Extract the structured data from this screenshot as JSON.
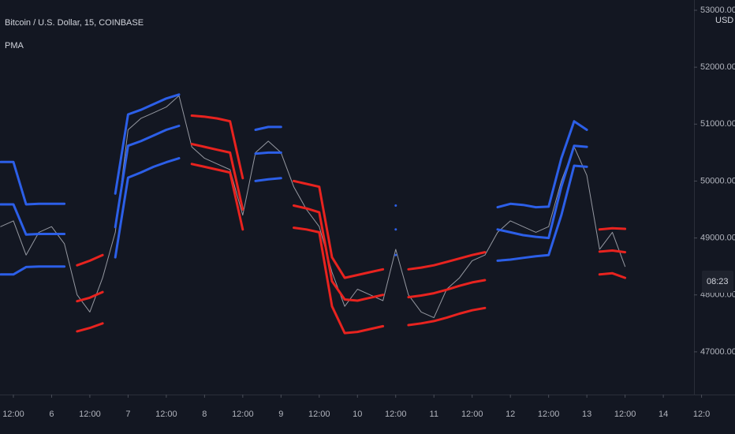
{
  "chart_data": {
    "type": "line",
    "title": "Bitcoin / U.S. Dollar, 15, COINBASE",
    "indicator": "PMA",
    "currency": "USD",
    "countdown": "08:23",
    "x": [
      8,
      12,
      16,
      20,
      24,
      28,
      32,
      36,
      40,
      44,
      48,
      52,
      56,
      60,
      64,
      68,
      72,
      76,
      80,
      84,
      88,
      92,
      96,
      100,
      104,
      108,
      112,
      116,
      120,
      124,
      128,
      132,
      136,
      140,
      144,
      148,
      152,
      156,
      160,
      164,
      168,
      172,
      176,
      180,
      184,
      188,
      192,
      196,
      200,
      204
    ],
    "xlim": [
      7.8,
      238.5
    ],
    "xticks": [
      {
        "value": 12,
        "label": "12:00"
      },
      {
        "value": 24,
        "label": "6"
      },
      {
        "value": 36,
        "label": "12:00"
      },
      {
        "value": 48,
        "label": "7"
      },
      {
        "value": 60,
        "label": "12:00"
      },
      {
        "value": 72,
        "label": "8"
      },
      {
        "value": 84,
        "label": "12:00"
      },
      {
        "value": 96,
        "label": "9"
      },
      {
        "value": 108,
        "label": "12:00"
      },
      {
        "value": 120,
        "label": "10"
      },
      {
        "value": 132,
        "label": "12:00"
      },
      {
        "value": 144,
        "label": "11"
      },
      {
        "value": 156,
        "label": "12:00"
      },
      {
        "value": 168,
        "label": "12"
      },
      {
        "value": 180,
        "label": "12:00"
      },
      {
        "value": 192,
        "label": "13"
      },
      {
        "value": 204,
        "label": "12:00"
      },
      {
        "value": 216,
        "label": "14"
      },
      {
        "value": 228,
        "label": "12:0"
      }
    ],
    "ylim": [
      46250,
      53180
    ],
    "yticks": [
      {
        "value": 47000,
        "label": "47000.00"
      },
      {
        "value": 48000,
        "label": "48000.00"
      },
      {
        "value": 49000,
        "label": "49000.00"
      },
      {
        "value": 50000,
        "label": "50000.00"
      },
      {
        "value": 51000,
        "label": "51000.00"
      },
      {
        "value": 52000,
        "label": "52000.00"
      },
      {
        "value": 53000,
        "label": "53000.00"
      }
    ],
    "grid": false,
    "series": [
      {
        "color": "#9598a1",
        "width": 1,
        "values": [
          49200,
          49300,
          48700,
          49100,
          49200,
          48900,
          48000,
          47700,
          48300,
          49100,
          50900,
          51100,
          51200,
          51300,
          51500,
          50600,
          50400,
          50300,
          50200,
          49400,
          50500,
          50700,
          50500,
          49900,
          49500,
          49200,
          48400,
          47800,
          48100,
          48000,
          47900,
          48800,
          48000,
          47700,
          47600,
          48100,
          48300,
          48600,
          48700,
          49100,
          49300,
          49200,
          49100,
          49200,
          50000,
          50600,
          50100,
          48800,
          49100,
          48500
        ]
      },
      {
        "color": "#2c5fe8",
        "width": 3,
        "values": [
          50335,
          50335,
          49590,
          49600,
          49600,
          49600,
          null,
          null,
          null,
          49780,
          51170,
          51250,
          51350,
          51450,
          51520,
          null,
          null,
          null,
          null,
          null,
          50900,
          50950,
          50950,
          null,
          null,
          null,
          null,
          null,
          null,
          null,
          null,
          49570,
          null,
          null,
          null,
          null,
          null,
          null,
          null,
          49540,
          49600,
          49580,
          49540,
          49550,
          50400,
          51050,
          50900,
          null,
          null,
          null
        ]
      },
      {
        "color": "#2c5fe8",
        "width": 3,
        "values": [
          49590,
          49590,
          49060,
          49070,
          49070,
          49070,
          null,
          null,
          null,
          49190,
          50620,
          50700,
          50800,
          50900,
          50970,
          null,
          null,
          null,
          null,
          null,
          50480,
          50500,
          50500,
          null,
          null,
          null,
          null,
          null,
          null,
          null,
          null,
          49150,
          null,
          null,
          null,
          null,
          null,
          null,
          null,
          49150,
          49100,
          49050,
          49020,
          49000,
          49900,
          50620,
          50600,
          null,
          null,
          null
        ]
      },
      {
        "color": "#2c5fe8",
        "width": 3,
        "values": [
          48360,
          48360,
          48490,
          48500,
          48500,
          48500,
          null,
          null,
          null,
          48660,
          50060,
          50150,
          50250,
          50330,
          50400,
          null,
          null,
          null,
          null,
          null,
          50000,
          50030,
          50050,
          null,
          null,
          null,
          null,
          null,
          null,
          null,
          null,
          48700,
          null,
          null,
          null,
          null,
          null,
          null,
          null,
          48600,
          48620,
          48650,
          48680,
          48700,
          49400,
          50270,
          50250,
          null,
          null,
          null
        ]
      },
      {
        "color": "#e8231f",
        "width": 3,
        "values": [
          null,
          null,
          null,
          null,
          null,
          null,
          48520,
          48600,
          48700,
          null,
          null,
          null,
          null,
          null,
          null,
          51150,
          51130,
          51100,
          51050,
          50050,
          null,
          null,
          null,
          50000,
          49950,
          49900,
          48660,
          48300,
          48350,
          48400,
          48450,
          null,
          48450,
          48480,
          48520,
          48580,
          48640,
          48700,
          48750,
          null,
          null,
          null,
          null,
          null,
          null,
          null,
          null,
          49150,
          49170,
          49160
        ]
      },
      {
        "color": "#e8231f",
        "width": 3,
        "values": [
          null,
          null,
          null,
          null,
          null,
          null,
          47890,
          47950,
          48050,
          null,
          null,
          null,
          null,
          null,
          null,
          50650,
          50600,
          50550,
          50500,
          49500,
          null,
          null,
          null,
          49570,
          49520,
          49450,
          48240,
          47920,
          47900,
          47950,
          48000,
          null,
          47960,
          47990,
          48030,
          48090,
          48160,
          48220,
          48260,
          null,
          null,
          null,
          null,
          null,
          null,
          null,
          null,
          48760,
          48780,
          48750
        ]
      },
      {
        "color": "#e8231f",
        "width": 3,
        "values": [
          null,
          null,
          null,
          null,
          null,
          null,
          47360,
          47420,
          47500,
          null,
          null,
          null,
          null,
          null,
          null,
          50300,
          50250,
          50200,
          50150,
          49150,
          null,
          null,
          null,
          49180,
          49150,
          49100,
          47800,
          47330,
          47350,
          47400,
          47450,
          null,
          47470,
          47500,
          47540,
          47600,
          47670,
          47730,
          47770,
          null,
          null,
          null,
          null,
          null,
          null,
          null,
          null,
          48360,
          48380,
          48300
        ]
      }
    ]
  }
}
